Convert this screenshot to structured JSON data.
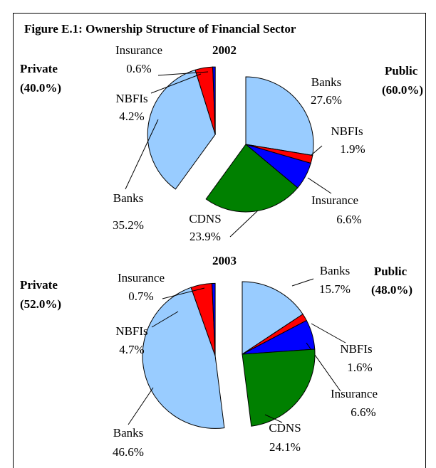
{
  "title": "Figure E.1: Ownership Structure of Financial Sector",
  "chart_data": [
    {
      "type": "pie",
      "title": "2002",
      "series": [
        {
          "name": "Public",
          "total": 60.0,
          "total_label": "(60.0%)",
          "categories": [
            "Banks",
            "NBFIs",
            "Insurance",
            "CDNS"
          ],
          "values": [
            27.6,
            1.9,
            6.6,
            23.9
          ],
          "value_labels": [
            "27.6%",
            "1.9%",
            "6.6%",
            "23.9%"
          ],
          "colors": [
            "#99ccff",
            "#ff0000",
            "#0000ff",
            "#008000"
          ]
        },
        {
          "name": "Private",
          "total": 40.0,
          "total_label": "(40.0%)",
          "categories": [
            "Banks",
            "NBFIs",
            "Insurance"
          ],
          "values": [
            35.2,
            4.2,
            0.6
          ],
          "value_labels": [
            "35.2%",
            "4.2%",
            "0.6%"
          ],
          "colors": [
            "#99ccff",
            "#ff0000",
            "#0000ff"
          ]
        }
      ]
    },
    {
      "type": "pie",
      "title": "2003",
      "series": [
        {
          "name": "Public",
          "total": 48.0,
          "total_label": "(48.0%)",
          "categories": [
            "Banks",
            "NBFIs",
            "Insurance",
            "CDNS"
          ],
          "values": [
            15.7,
            1.6,
            6.6,
            24.1
          ],
          "value_labels": [
            "15.7%",
            "1.6%",
            "6.6%",
            "24.1%"
          ],
          "colors": [
            "#99ccff",
            "#ff0000",
            "#0000ff",
            "#008000"
          ]
        },
        {
          "name": "Private",
          "total": 52.0,
          "total_label": "(52.0%)",
          "categories": [
            "Banks",
            "NBFIs",
            "Insurance"
          ],
          "values": [
            46.6,
            4.7,
            0.7
          ],
          "value_labels": [
            "46.6%",
            "4.7%",
            "0.7%"
          ],
          "colors": [
            "#99ccff",
            "#ff0000",
            "#0000ff"
          ]
        }
      ]
    }
  ]
}
